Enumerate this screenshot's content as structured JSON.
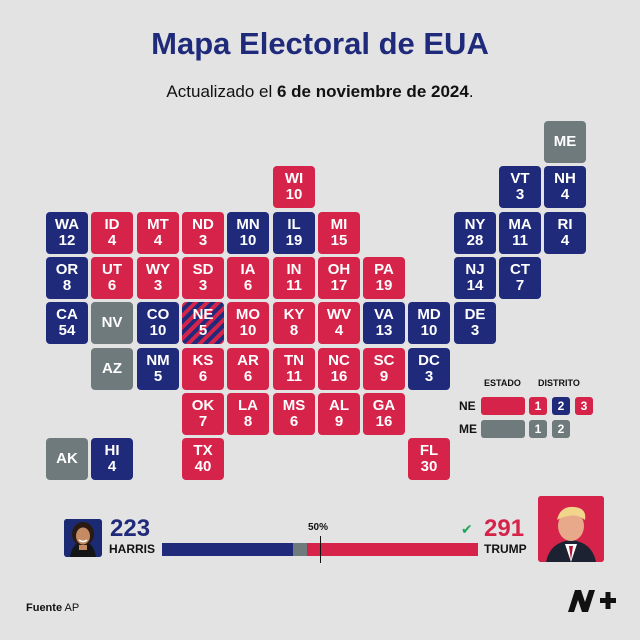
{
  "header": {
    "title": "Mapa Electoral de EUA",
    "subtitle_pre": "Actualizado el ",
    "subtitle_date": "6 de noviembre de 2024",
    "subtitle_post": "."
  },
  "colors": {
    "dem": "#1f2a7a",
    "rep": "#d6234a",
    "pending": "#6f7a7c"
  },
  "states": [
    {
      "abbr": "ME",
      "ev": "",
      "party": "pending",
      "col": 11,
      "row": 0
    },
    {
      "abbr": "WI",
      "ev": "10",
      "party": "rep",
      "col": 5,
      "row": 1
    },
    {
      "abbr": "VT",
      "ev": "3",
      "party": "dem",
      "col": 10,
      "row": 1
    },
    {
      "abbr": "NH",
      "ev": "4",
      "party": "dem",
      "col": 11,
      "row": 1
    },
    {
      "abbr": "WA",
      "ev": "12",
      "party": "dem",
      "col": 0,
      "row": 2
    },
    {
      "abbr": "ID",
      "ev": "4",
      "party": "rep",
      "col": 1,
      "row": 2
    },
    {
      "abbr": "MT",
      "ev": "4",
      "party": "rep",
      "col": 2,
      "row": 2
    },
    {
      "abbr": "ND",
      "ev": "3",
      "party": "rep",
      "col": 3,
      "row": 2
    },
    {
      "abbr": "MN",
      "ev": "10",
      "party": "dem",
      "col": 4,
      "row": 2
    },
    {
      "abbr": "IL",
      "ev": "19",
      "party": "dem",
      "col": 5,
      "row": 2
    },
    {
      "abbr": "MI",
      "ev": "15",
      "party": "rep",
      "col": 6,
      "row": 2
    },
    {
      "abbr": "NY",
      "ev": "28",
      "party": "dem",
      "col": 9,
      "row": 2
    },
    {
      "abbr": "MA",
      "ev": "11",
      "party": "dem",
      "col": 10,
      "row": 2
    },
    {
      "abbr": "RI",
      "ev": "4",
      "party": "dem",
      "col": 11,
      "row": 2
    },
    {
      "abbr": "OR",
      "ev": "8",
      "party": "dem",
      "col": 0,
      "row": 3
    },
    {
      "abbr": "UT",
      "ev": "6",
      "party": "rep",
      "col": 1,
      "row": 3
    },
    {
      "abbr": "WY",
      "ev": "3",
      "party": "rep",
      "col": 2,
      "row": 3
    },
    {
      "abbr": "SD",
      "ev": "3",
      "party": "rep",
      "col": 3,
      "row": 3
    },
    {
      "abbr": "IA",
      "ev": "6",
      "party": "rep",
      "col": 4,
      "row": 3
    },
    {
      "abbr": "IN",
      "ev": "11",
      "party": "rep",
      "col": 5,
      "row": 3
    },
    {
      "abbr": "OH",
      "ev": "17",
      "party": "rep",
      "col": 6,
      "row": 3
    },
    {
      "abbr": "PA",
      "ev": "19",
      "party": "rep",
      "col": 7,
      "row": 3
    },
    {
      "abbr": "NJ",
      "ev": "14",
      "party": "dem",
      "col": 9,
      "row": 3
    },
    {
      "abbr": "CT",
      "ev": "7",
      "party": "dem",
      "col": 10,
      "row": 3
    },
    {
      "abbr": "CA",
      "ev": "54",
      "party": "dem",
      "col": 0,
      "row": 4
    },
    {
      "abbr": "NV",
      "ev": "",
      "party": "pending",
      "col": 1,
      "row": 4
    },
    {
      "abbr": "CO",
      "ev": "10",
      "party": "dem",
      "col": 2,
      "row": 4
    },
    {
      "abbr": "NE",
      "ev": "5",
      "party": "split",
      "col": 3,
      "row": 4
    },
    {
      "abbr": "MO",
      "ev": "10",
      "party": "rep",
      "col": 4,
      "row": 4
    },
    {
      "abbr": "KY",
      "ev": "8",
      "party": "rep",
      "col": 5,
      "row": 4
    },
    {
      "abbr": "WV",
      "ev": "4",
      "party": "rep",
      "col": 6,
      "row": 4
    },
    {
      "abbr": "VA",
      "ev": "13",
      "party": "dem",
      "col": 7,
      "row": 4
    },
    {
      "abbr": "MD",
      "ev": "10",
      "party": "dem",
      "col": 8,
      "row": 4
    },
    {
      "abbr": "DE",
      "ev": "3",
      "party": "dem",
      "col": 9,
      "row": 4
    },
    {
      "abbr": "AZ",
      "ev": "",
      "party": "pending",
      "col": 1,
      "row": 5
    },
    {
      "abbr": "NM",
      "ev": "5",
      "party": "dem",
      "col": 2,
      "row": 5
    },
    {
      "abbr": "KS",
      "ev": "6",
      "party": "rep",
      "col": 3,
      "row": 5
    },
    {
      "abbr": "AR",
      "ev": "6",
      "party": "rep",
      "col": 4,
      "row": 5
    },
    {
      "abbr": "TN",
      "ev": "11",
      "party": "rep",
      "col": 5,
      "row": 5
    },
    {
      "abbr": "NC",
      "ev": "16",
      "party": "rep",
      "col": 6,
      "row": 5
    },
    {
      "abbr": "SC",
      "ev": "9",
      "party": "rep",
      "col": 7,
      "row": 5
    },
    {
      "abbr": "DC",
      "ev": "3",
      "party": "dem",
      "col": 8,
      "row": 5
    },
    {
      "abbr": "OK",
      "ev": "7",
      "party": "rep",
      "col": 3,
      "row": 6
    },
    {
      "abbr": "LA",
      "ev": "8",
      "party": "rep",
      "col": 4,
      "row": 6
    },
    {
      "abbr": "MS",
      "ev": "6",
      "party": "rep",
      "col": 5,
      "row": 6
    },
    {
      "abbr": "AL",
      "ev": "9",
      "party": "rep",
      "col": 6,
      "row": 6
    },
    {
      "abbr": "GA",
      "ev": "16",
      "party": "rep",
      "col": 7,
      "row": 6
    },
    {
      "abbr": "AK",
      "ev": "",
      "party": "pending",
      "col": 0,
      "row": 7
    },
    {
      "abbr": "HI",
      "ev": "4",
      "party": "dem",
      "col": 1,
      "row": 7
    },
    {
      "abbr": "TX",
      "ev": "40",
      "party": "rep",
      "col": 3,
      "row": 7
    },
    {
      "abbr": "FL",
      "ev": "30",
      "party": "rep",
      "col": 8,
      "row": 7
    }
  ],
  "legend": {
    "estado_label": "ESTADO",
    "distrito_label": "DISTRITO",
    "ne_label": "NE",
    "me_label": "ME",
    "ne_districts": [
      {
        "label": "1",
        "party": "rep"
      },
      {
        "label": "2",
        "party": "dem"
      },
      {
        "label": "3",
        "party": "rep"
      }
    ],
    "me_districts": [
      {
        "label": "1",
        "party": "pending"
      },
      {
        "label": "2",
        "party": "pending"
      }
    ]
  },
  "results": {
    "harris": {
      "votes": "223",
      "name": "HARRIS"
    },
    "trump": {
      "votes": "291",
      "name": "TRUMP",
      "winner_mark": "✔"
    },
    "majority_label": "50%",
    "total_ev": 538,
    "dem_ev": 223,
    "rep_ev": 291
  },
  "footer": {
    "source_bold": "Fuente",
    "source_rest": " AP"
  }
}
